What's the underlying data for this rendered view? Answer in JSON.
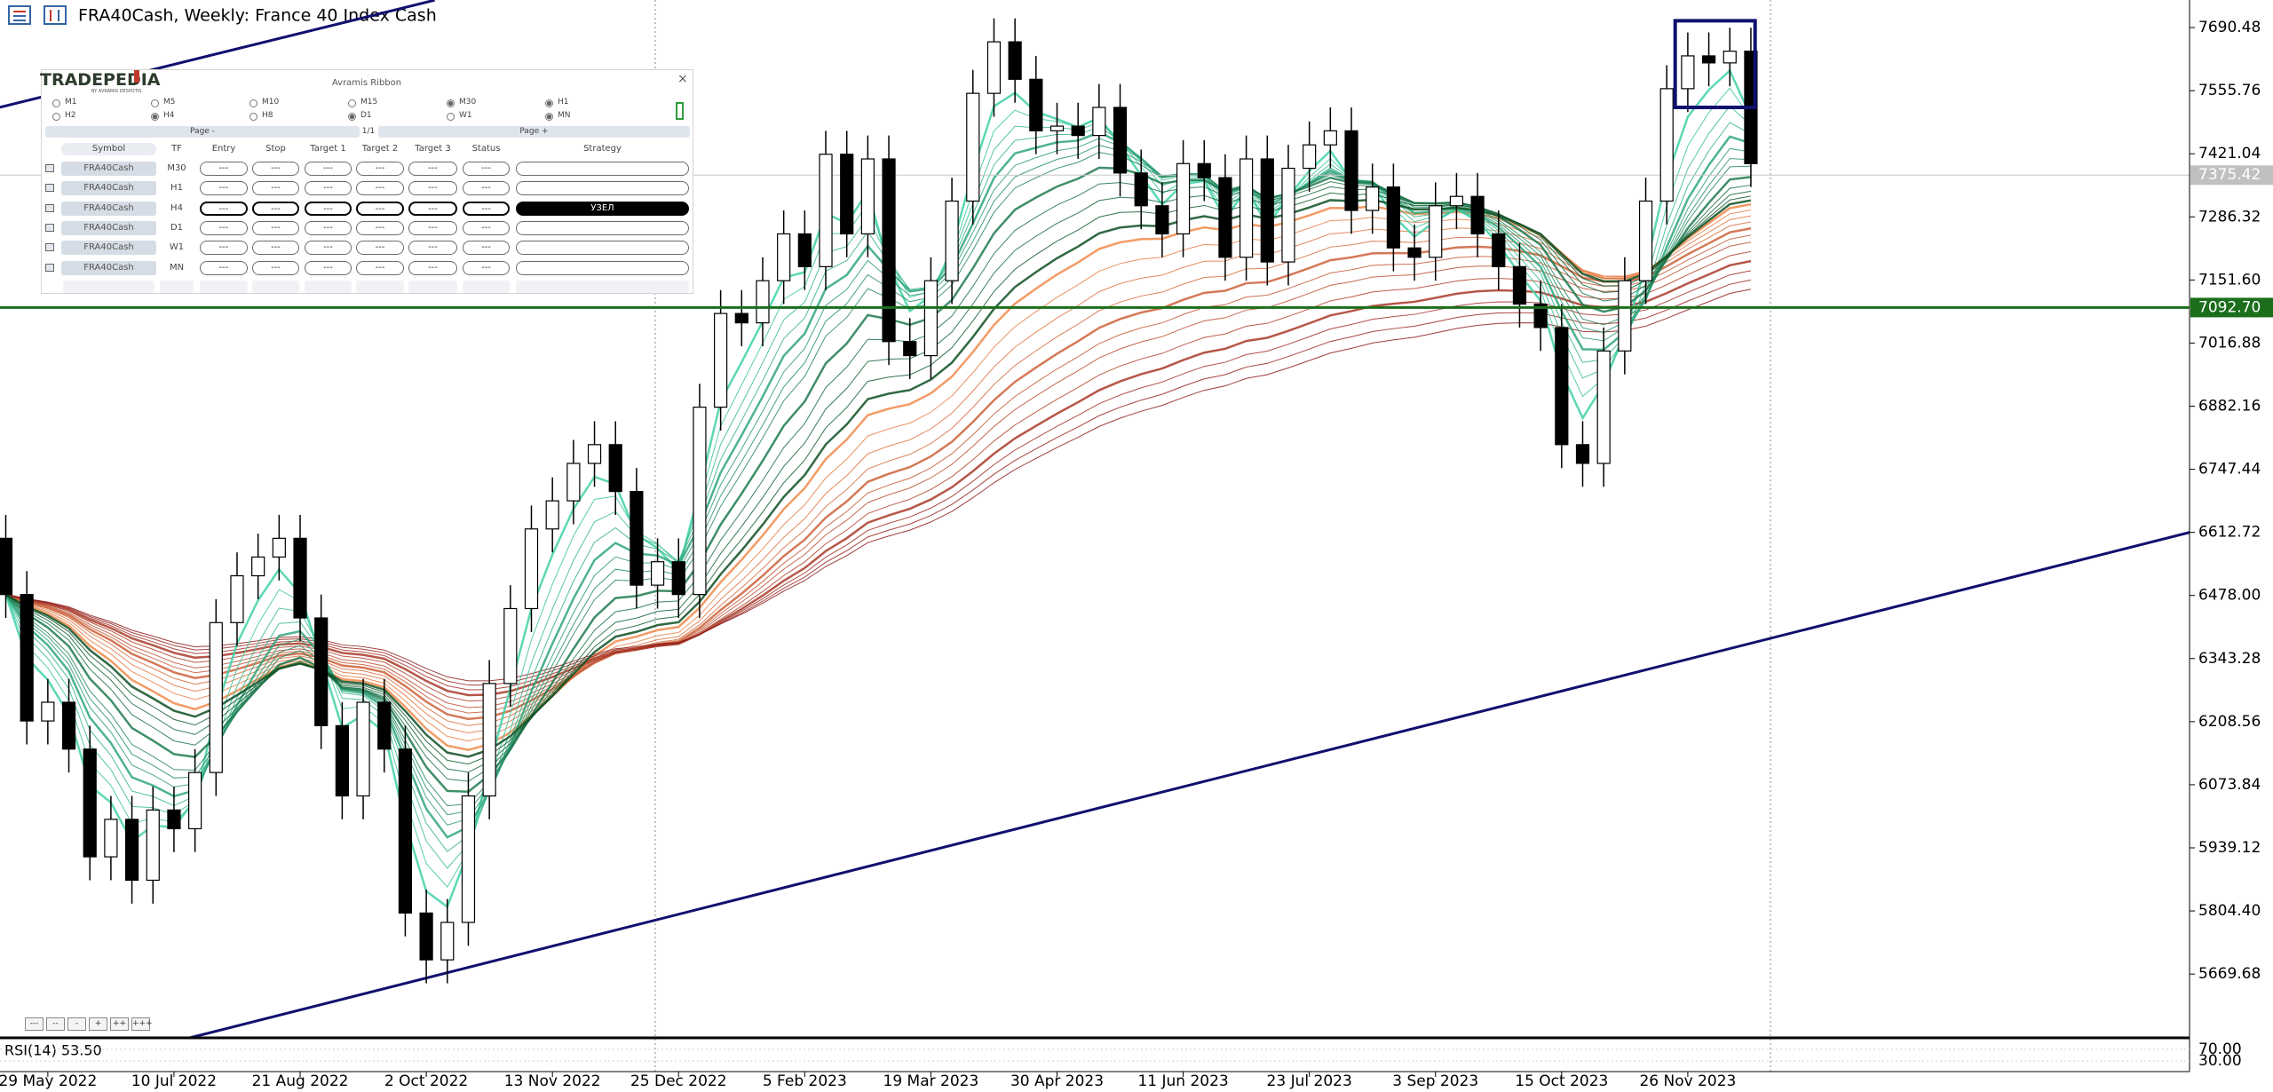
{
  "header": {
    "title": "FRA40Cash, Weekly:  France 40 Index Cash"
  },
  "panel": {
    "brand": "TRADEPEDIA",
    "brand_sub": "BY AVRAMIS DESPOTIS",
    "title": "Avramis Ribbon",
    "close": "×",
    "timeframes": [
      {
        "label": "M1",
        "checked": false
      },
      {
        "label": "M5",
        "checked": false
      },
      {
        "label": "M10",
        "checked": false
      },
      {
        "label": "M15",
        "checked": false
      },
      {
        "label": "M30",
        "checked": true
      },
      {
        "label": "H1",
        "checked": true
      },
      {
        "label": "H2",
        "checked": false
      },
      {
        "label": "H4",
        "checked": true
      },
      {
        "label": "H8",
        "checked": false
      },
      {
        "label": "D1",
        "checked": true
      },
      {
        "label": "W1",
        "checked": false
      },
      {
        "label": "MN",
        "checked": true
      }
    ],
    "page_prev": "Page -",
    "page_info": "1/1",
    "page_next": "Page +",
    "columns": [
      "Symbol",
      "TF",
      "Entry",
      "Stop",
      "Target 1",
      "Target 2",
      "Target 3",
      "Status",
      "Strategy"
    ],
    "rows": [
      {
        "symbol": "FRA40Cash",
        "tf": "M30",
        "cells": [
          "---",
          "---",
          "---",
          "---",
          "---",
          "---"
        ]
      },
      {
        "symbol": "FRA40Cash",
        "tf": "H1",
        "cells": [
          "---",
          "---",
          "---",
          "---",
          "---",
          "---"
        ]
      },
      {
        "symbol": "FRA40Cash",
        "tf": "H4",
        "cells": [
          "---",
          "---",
          "---",
          "---",
          "---",
          "---"
        ],
        "strategy": "УЗЕЛ"
      },
      {
        "symbol": "FRA40Cash",
        "tf": "D1",
        "cells": [
          "---",
          "---",
          "---",
          "---",
          "---",
          "---"
        ]
      },
      {
        "symbol": "FRA40Cash",
        "tf": "W1",
        "cells": [
          "---",
          "---",
          "---",
          "---",
          "---",
          "---"
        ]
      },
      {
        "symbol": "FRA40Cash",
        "tf": "MN",
        "cells": [
          "---",
          "---",
          "---",
          "---",
          "---",
          "---"
        ]
      }
    ]
  },
  "zoom_buttons": [
    "---",
    "--",
    "-",
    "+",
    "++",
    "+++"
  ],
  "chart_data": {
    "type": "candlestick",
    "categories": [
      null,
      null,
      "29 May 2022",
      null,
      null,
      null,
      null,
      null,
      "10 Jul 2022",
      null,
      null,
      null,
      null,
      null,
      "21 Aug 2022",
      null,
      null,
      null,
      null,
      null,
      "2 Oct 2022",
      null,
      null,
      null,
      null,
      null,
      "13 Nov 2022",
      null,
      null,
      null,
      null,
      null,
      "25 Dec 2022",
      null,
      null,
      null,
      null,
      null,
      "5 Feb 2023",
      null,
      null,
      null,
      null,
      null,
      "19 Mar 2023",
      null,
      null,
      null,
      null,
      null,
      "30 Apr 2023",
      null,
      null,
      null,
      null,
      null,
      "11 Jun 2023",
      null,
      null,
      null,
      null,
      null,
      "23 Jul 2023",
      null,
      null,
      null,
      null,
      null,
      "3 Sep 2023",
      null,
      null,
      null,
      null,
      null,
      "15 Oct 2023",
      null,
      null,
      null,
      null,
      null,
      "26 Nov 2023",
      null,
      null,
      null
    ],
    "open": [
      6600,
      6480,
      6210,
      6250,
      6150,
      5920,
      6000,
      5870,
      6020,
      5980,
      6100,
      6420,
      6520,
      6560,
      6600,
      6430,
      6200,
      6050,
      6250,
      6150,
      5800,
      5700,
      5780,
      6050,
      6290,
      6450,
      6620,
      6680,
      6760,
      6800,
      6700,
      6500,
      6550,
      6480,
      6880,
      7080,
      7060,
      7150,
      7250,
      7180,
      7420,
      7250,
      7410,
      7020,
      6990,
      7150,
      7320,
      7550,
      7660,
      7580,
      7470,
      7480,
      7460,
      7520,
      7380,
      7310,
      7250,
      7400,
      7370,
      7200,
      7410,
      7190,
      7390,
      7440,
      7470,
      7300,
      7350,
      7220,
      7200,
      7310,
      7330,
      7250,
      7180,
      7100,
      7050,
      6800,
      6760,
      7000,
      7150,
      7320,
      7560,
      7630,
      7615,
      7640
    ],
    "high": [
      6650,
      6530,
      6300,
      6300,
      6200,
      6050,
      6050,
      6070,
      6070,
      6150,
      6470,
      6570,
      6610,
      6650,
      6650,
      6480,
      6250,
      6300,
      6300,
      6200,
      5850,
      5830,
      6100,
      6340,
      6500,
      6670,
      6730,
      6810,
      6850,
      6850,
      6750,
      6600,
      6600,
      6930,
      7130,
      7130,
      7200,
      7300,
      7300,
      7470,
      7470,
      7460,
      7460,
      7070,
      7200,
      7370,
      7600,
      7710,
      7710,
      7630,
      7530,
      7530,
      7570,
      7570,
      7430,
      7360,
      7450,
      7450,
      7420,
      7460,
      7460,
      7440,
      7490,
      7520,
      7520,
      7400,
      7400,
      7270,
      7360,
      7380,
      7380,
      7300,
      7230,
      7150,
      7100,
      6850,
      7050,
      7200,
      7370,
      7610,
      7680,
      7680,
      7690,
      7690
    ],
    "low": [
      6430,
      6160,
      6160,
      6100,
      5870,
      5870,
      5820,
      5820,
      5930,
      5930,
      6050,
      6370,
      6470,
      6510,
      6380,
      6150,
      6000,
      6000,
      6100,
      5750,
      5650,
      5650,
      5730,
      6000,
      6240,
      6400,
      6570,
      6630,
      6710,
      6650,
      6450,
      6450,
      6430,
      6430,
      6830,
      7010,
      7010,
      7100,
      7130,
      7130,
      7200,
      7200,
      6970,
      6940,
      6940,
      7100,
      7270,
      7500,
      7530,
      7420,
      7420,
      7410,
      7410,
      7330,
      7260,
      7200,
      7200,
      7320,
      7150,
      7150,
      7140,
      7140,
      7340,
      7390,
      7250,
      7250,
      7170,
      7150,
      7150,
      7260,
      7200,
      7130,
      7050,
      7000,
      6750,
      6710,
      6710,
      6950,
      7100,
      7270,
      7510,
      7565,
      7565,
      7350
    ],
    "close": [
      6480,
      6210,
      6250,
      6150,
      5920,
      6000,
      5870,
      6020,
      5980,
      6100,
      6420,
      6520,
      6560,
      6600,
      6430,
      6200,
      6050,
      6250,
      6150,
      5800,
      5700,
      5780,
      6050,
      6290,
      6450,
      6620,
      6680,
      6760,
      6800,
      6700,
      6500,
      6550,
      6480,
      6880,
      7080,
      7060,
      7150,
      7250,
      7180,
      7420,
      7250,
      7410,
      7020,
      6990,
      7150,
      7320,
      7550,
      7660,
      7580,
      7470,
      7480,
      7460,
      7520,
      7380,
      7310,
      7250,
      7400,
      7370,
      7200,
      7410,
      7190,
      7390,
      7440,
      7470,
      7300,
      7350,
      7220,
      7200,
      7310,
      7330,
      7250,
      7180,
      7100,
      7050,
      6800,
      6760,
      7000,
      7150,
      7320,
      7560,
      7630,
      7615,
      7640,
      7400
    ],
    "up_color": "#ffffff",
    "down_color": "#000000",
    "ylim": [
      5533.5,
      7749.3
    ],
    "yticks": [
      7690.48,
      7555.76,
      7421.04,
      7286.32,
      {
        "value": 7151.6,
        "label": "7151.60"
      },
      7016.88,
      6882.16,
      6747.44,
      6612.72,
      {
        "value": 6478,
        "label": "6478.00"
      },
      6343.28,
      6208.56,
      6073.84,
      5939.12,
      {
        "value": 5804.4,
        "label": "5804.40"
      },
      5669.68
    ],
    "price_lines": [
      {
        "value": 7092.7,
        "label": "7092.70",
        "color": "#1b6e1b"
      }
    ],
    "last_price": 7375.42,
    "trendlines": [
      {
        "points": [
          [
            8.7,
            5533
          ],
          [
            103.9,
            6613
          ]
        ],
        "color": "#10106e"
      },
      {
        "points": [
          [
            -0.3,
            7520
          ],
          [
            20.4,
            7749
          ]
        ],
        "color": "#10106e"
      }
    ],
    "highlight_box": {
      "x": [
        79.4,
        83.2
      ],
      "y": [
        7520,
        7705
      ],
      "color": "#10106e"
    },
    "indicator": {
      "label": "RSI(14) 53.50",
      "ylim": [
        0,
        100
      ],
      "yticks": [
        {
          "value": 70,
          "label": "70.00"
        },
        {
          "value": 30,
          "label": "30.00"
        }
      ]
    }
  }
}
